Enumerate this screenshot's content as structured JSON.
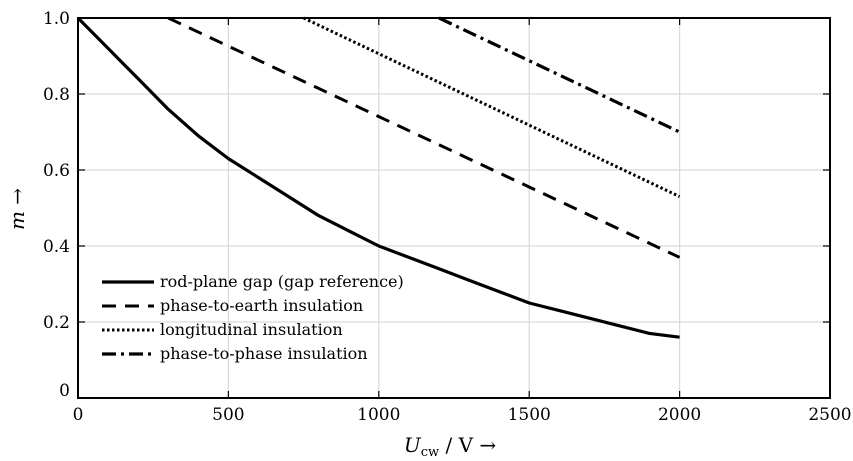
{
  "chart_data": {
    "type": "line",
    "title": "",
    "xlabel": {
      "main": "U",
      "sub": "cw",
      "rest": " / V →"
    },
    "ylabel": {
      "main": "m",
      "rest": " →"
    },
    "xlim": [
      0,
      2500
    ],
    "ylim": [
      0,
      1.0
    ],
    "xticks": [
      0,
      500,
      1000,
      1500,
      2000,
      2500
    ],
    "xtick_labels": [
      "0",
      "500",
      "1000",
      "1500",
      "2000",
      "2500"
    ],
    "yticks": [
      0,
      0.2,
      0.4,
      0.6,
      0.8,
      1.0
    ],
    "ytick_labels": [
      "0",
      "0.2",
      "0.4",
      "0.6",
      "0.8",
      "1.0"
    ],
    "grid": true,
    "legend_position": "bottom-left",
    "series": [
      {
        "name": "rod-plane gap (gap reference)",
        "style": "solid",
        "x": [
          0,
          100,
          200,
          300,
          400,
          500,
          600,
          700,
          800,
          900,
          1000,
          1100,
          1200,
          1300,
          1400,
          1500,
          1600,
          1700,
          1800,
          1900,
          2000
        ],
        "y": [
          1.0,
          0.92,
          0.84,
          0.76,
          0.69,
          0.63,
          0.58,
          0.53,
          0.48,
          0.44,
          0.4,
          0.37,
          0.34,
          0.31,
          0.28,
          0.25,
          0.23,
          0.21,
          0.19,
          0.17,
          0.16
        ]
      },
      {
        "name": "phase-to-earth insulation",
        "style": "dashed",
        "x": [
          300,
          2000
        ],
        "y": [
          1.0,
          0.37
        ]
      },
      {
        "name": "longitudinal insulation",
        "style": "dotted",
        "x": [
          750,
          2000
        ],
        "y": [
          1.0,
          0.53
        ]
      },
      {
        "name": "phase-to-phase insulation",
        "style": "dashdot",
        "x": [
          1200,
          2000
        ],
        "y": [
          1.0,
          0.7
        ]
      }
    ]
  }
}
